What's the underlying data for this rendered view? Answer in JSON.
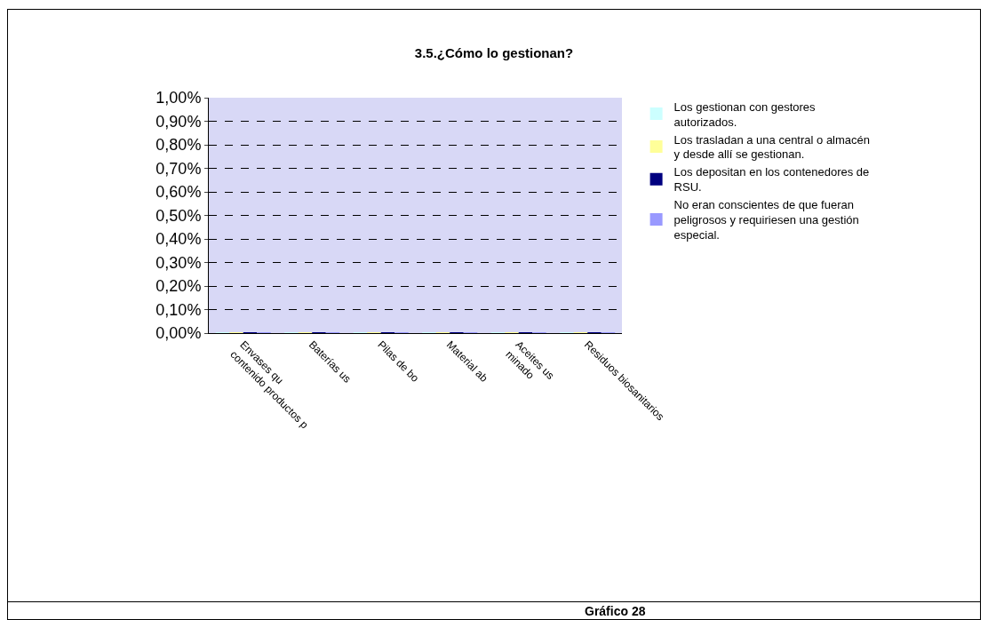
{
  "chart_data": {
    "type": "bar",
    "title": "3.5.¿Cómo lo gestionan?",
    "categories": [
      "Envases qu\ncontenido productos p",
      "Baterías us",
      "Pilas de bo",
      "Material ab",
      "Aceites us\nminado",
      "Residuos biosanitarios"
    ],
    "series": [
      {
        "name": "Los gestionan con gestores autorizados.",
        "color": "#ccffff",
        "values": [
          0,
          0,
          0,
          0,
          0,
          0
        ]
      },
      {
        "name": "Los trasladan a una central o almacén y desde allí se gestionan.",
        "color": "#ffff99",
        "values": [
          0,
          0,
          0,
          0,
          0,
          0
        ]
      },
      {
        "name": "Los depositan en los contenedores de RSU.",
        "color": "#000080",
        "values": [
          0,
          0,
          0,
          0,
          0,
          0
        ]
      },
      {
        "name": "No eran conscientes de que fueran peligrosos y requiriesen una gestión especial.",
        "color": "#9999ff",
        "values": [
          0,
          0,
          0,
          0,
          0,
          0
        ]
      }
    ],
    "ylim": [
      0,
      1
    ],
    "yticks": [
      {
        "value": 0,
        "label": "0,00%"
      },
      {
        "value": 0.1,
        "label": "0,10%"
      },
      {
        "value": 0.2,
        "label": "0,20%"
      },
      {
        "value": 0.3,
        "label": "0,30%"
      },
      {
        "value": 0.4,
        "label": "0,40%"
      },
      {
        "value": 0.5,
        "label": "0,50%"
      },
      {
        "value": 0.6,
        "label": "0,60%"
      },
      {
        "value": 0.7,
        "label": "0,70%"
      },
      {
        "value": 0.8,
        "label": "0,80%"
      },
      {
        "value": 0.9,
        "label": "0,90%"
      },
      {
        "value": 1,
        "label": "1,00%"
      }
    ],
    "grid": "y",
    "legend": "right",
    "annotations": [
      "Gráfico 28"
    ]
  }
}
